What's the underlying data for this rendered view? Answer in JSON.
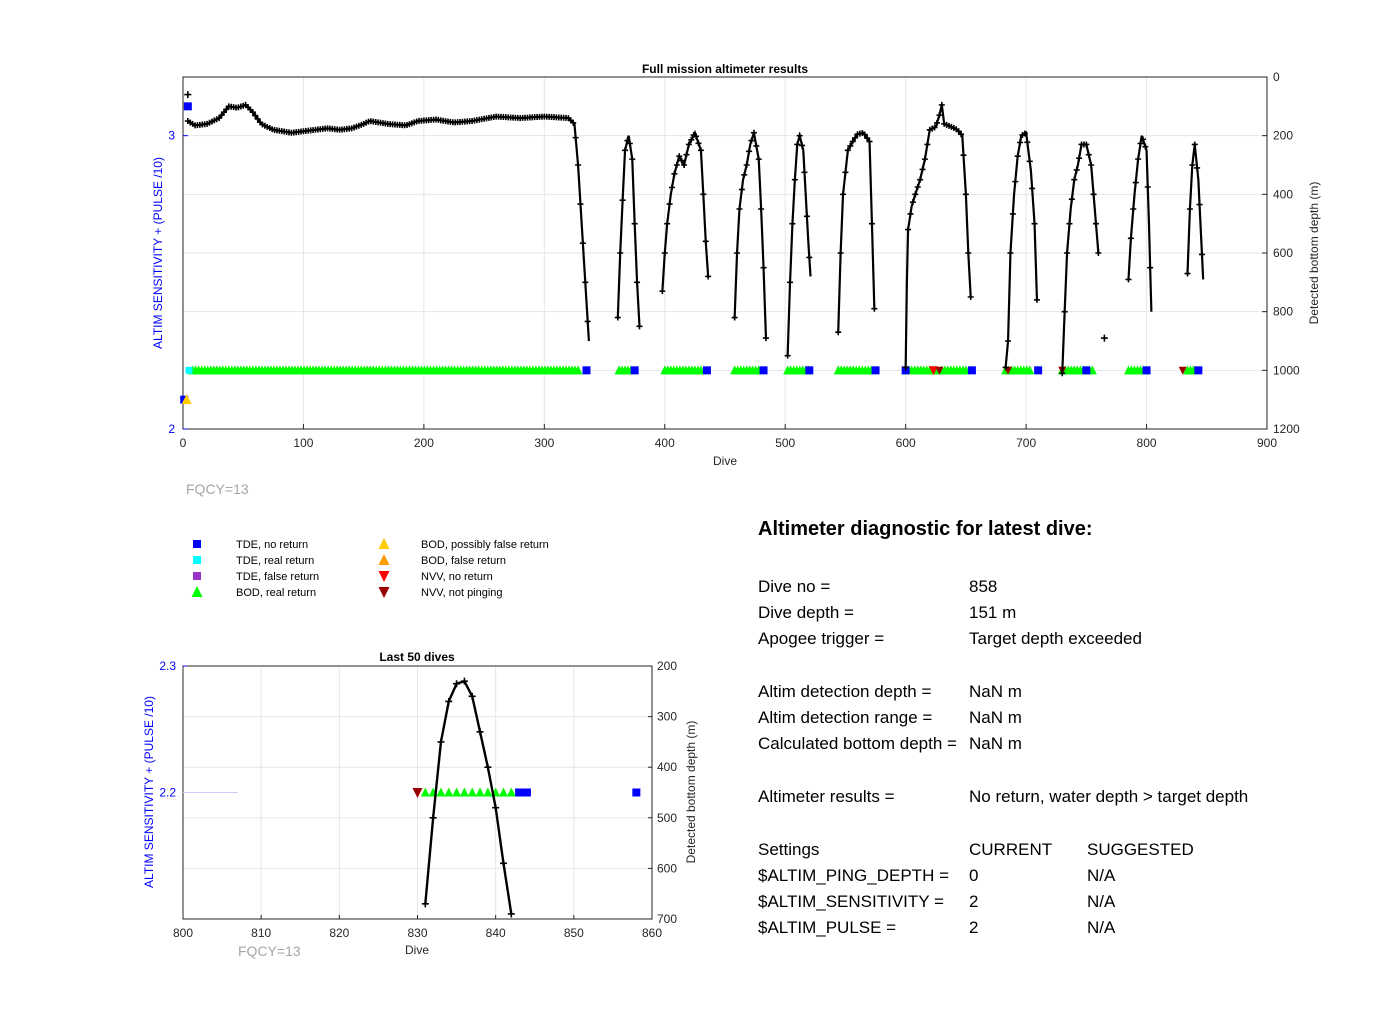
{
  "chart_data": [
    {
      "type": "scatter",
      "title": "Full mission altimeter results",
      "xlabel": "Dive",
      "ylabel": "ALTIM SENSITIVITY + (PULSE /10)",
      "y2label": "Detected bottom depth (m)",
      "xlim": [
        0,
        900
      ],
      "ylim": [
        2,
        3.2
      ],
      "y2lim": [
        0,
        1200
      ],
      "y2_reversed": true,
      "xticks": [
        0,
        100,
        200,
        300,
        400,
        500,
        600,
        700,
        800,
        900
      ],
      "yticks": [
        2,
        3
      ],
      "y2ticks": [
        0,
        200,
        400,
        600,
        800,
        1000,
        1200
      ],
      "grid": true,
      "annotation": "FQCY=13",
      "depth_series": {
        "name": "Detected bottom depth",
        "dive_segments": [
          [
            [
              4,
              150
            ],
            [
              10,
              165
            ],
            [
              20,
              160
            ],
            [
              30,
              140
            ],
            [
              38,
              100
            ],
            [
              45,
              105
            ],
            [
              52,
              95
            ],
            [
              58,
              120
            ],
            [
              65,
              160
            ],
            [
              75,
              180
            ],
            [
              90,
              190
            ],
            [
              100,
              185
            ],
            [
              110,
              180
            ],
            [
              120,
              175
            ],
            [
              130,
              180
            ],
            [
              140,
              175
            ],
            [
              150,
              160
            ],
            [
              155,
              150
            ],
            [
              170,
              160
            ],
            [
              185,
              165
            ],
            [
              195,
              150
            ],
            [
              210,
              145
            ],
            [
              225,
              155
            ],
            [
              240,
              150
            ],
            [
              260,
              135
            ],
            [
              280,
              140
            ],
            [
              300,
              135
            ],
            [
              320,
              140
            ],
            [
              325,
              160
            ],
            [
              328,
              300
            ],
            [
              331,
              500
            ],
            [
              334,
              700
            ],
            [
              337,
              900
            ]
          ],
          [
            [
              361,
              820
            ],
            [
              363,
              600
            ],
            [
              365,
              420
            ],
            [
              367,
              250
            ],
            [
              370,
              200
            ],
            [
              373,
              280
            ],
            [
              375,
              500
            ],
            [
              377,
              700
            ],
            [
              379,
              850
            ]
          ],
          [
            [
              398,
              730
            ],
            [
              400,
              600
            ],
            [
              402,
              500
            ],
            [
              405,
              400
            ],
            [
              408,
              330
            ],
            [
              412,
              270
            ],
            [
              416,
              300
            ],
            [
              420,
              230
            ],
            [
              425,
              190
            ],
            [
              430,
              250
            ],
            [
              432,
              400
            ],
            [
              434,
              560
            ],
            [
              436,
              680
            ]
          ],
          [
            [
              458,
              820
            ],
            [
              460,
              600
            ],
            [
              462,
              450
            ],
            [
              465,
              350
            ],
            [
              468,
              300
            ],
            [
              471,
              230
            ],
            [
              474,
              190
            ],
            [
              478,
              280
            ],
            [
              480,
              450
            ],
            [
              482,
              650
            ],
            [
              484,
              890
            ]
          ],
          [
            [
              502,
              950
            ],
            [
              504,
              700
            ],
            [
              506,
              500
            ],
            [
              508,
              350
            ],
            [
              510,
              230
            ],
            [
              512,
              200
            ],
            [
              515,
              250
            ],
            [
              517,
              400
            ],
            [
              519,
              550
            ],
            [
              521,
              680
            ]
          ],
          [
            [
              544,
              870
            ],
            [
              546,
              600
            ],
            [
              548,
              400
            ],
            [
              552,
              250
            ],
            [
              556,
              220
            ],
            [
              560,
              195
            ],
            [
              565,
              190
            ],
            [
              570,
              220
            ],
            [
              572,
              500
            ],
            [
              574,
              790
            ]
          ],
          [
            [
              600,
              990
            ],
            [
              601,
              700
            ],
            [
              602,
              520
            ],
            [
              605,
              440
            ],
            [
              608,
              400
            ],
            [
              612,
              350
            ],
            [
              616,
              280
            ],
            [
              620,
              180
            ],
            [
              625,
              170
            ],
            [
              628,
              130
            ],
            [
              630,
              95
            ],
            [
              632,
              160
            ],
            [
              638,
              170
            ],
            [
              643,
              180
            ],
            [
              647,
              200
            ],
            [
              650,
              400
            ],
            [
              652,
              600
            ],
            [
              654,
              750
            ]
          ],
          [
            [
              683,
              990
            ],
            [
              685,
              900
            ],
            [
              687,
              600
            ],
            [
              690,
              400
            ],
            [
              693,
              270
            ],
            [
              696,
              200
            ],
            [
              700,
              190
            ],
            [
              704,
              320
            ],
            [
              707,
              500
            ],
            [
              709,
              760
            ]
          ],
          [
            [
              730,
              1010
            ],
            [
              732,
              800
            ],
            [
              734,
              600
            ],
            [
              737,
              450
            ],
            [
              740,
              350
            ],
            [
              743,
              300
            ],
            [
              746,
              230
            ],
            [
              750,
              230
            ],
            [
              754,
              300
            ],
            [
              757,
              450
            ],
            [
              760,
              600
            ]
          ],
          [
            [
              785,
              690
            ],
            [
              787,
              550
            ],
            [
              790,
              400
            ],
            [
              793,
              280
            ],
            [
              796,
              200
            ],
            [
              800,
              250
            ],
            [
              802,
              500
            ],
            [
              804,
              800
            ]
          ],
          [
            [
              834,
              670
            ],
            [
              836,
              450
            ],
            [
              838,
              300
            ],
            [
              840,
              230
            ],
            [
              843,
              350
            ],
            [
              845,
              520
            ],
            [
              847,
              690
            ]
          ]
        ],
        "outliers": [
          [
            4,
            60
          ],
          [
            765,
            890
          ]
        ]
      },
      "tde_no_return": [
        [
          1,
          2.1
        ],
        [
          4,
          3.1
        ],
        [
          335,
          2.2
        ],
        [
          375,
          2.2
        ],
        [
          435,
          2.2
        ],
        [
          482,
          2.2
        ],
        [
          520,
          2.2
        ],
        [
          575,
          2.2
        ],
        [
          600,
          2.2
        ],
        [
          655,
          2.2
        ],
        [
          710,
          2.2
        ],
        [
          750,
          2.2
        ],
        [
          800,
          2.2
        ],
        [
          843,
          2.2
        ]
      ],
      "tde_real_return": [
        [
          5,
          2.2
        ]
      ],
      "bod_real_return_ranges": [
        [
          8,
          330
        ],
        [
          362,
          373
        ],
        [
          400,
          430
        ],
        [
          458,
          478
        ],
        [
          502,
          520
        ],
        [
          544,
          572
        ],
        [
          600,
          625
        ],
        [
          630,
          650
        ],
        [
          683,
          705
        ],
        [
          730,
          755
        ],
        [
          785,
          800
        ],
        [
          834,
          840
        ]
      ],
      "bod_possibly_false_return": [
        [
          3,
          2.1
        ]
      ],
      "nvv_no_return": [
        [
          623,
          2.2
        ]
      ],
      "nvv_not_pinging": [
        [
          628,
          2.2
        ],
        [
          685,
          2.2
        ],
        [
          730,
          2.2
        ],
        [
          830,
          2.2
        ]
      ]
    },
    {
      "type": "scatter",
      "title": "Last 50 dives",
      "xlabel": "Dive",
      "ylabel": "ALTIM SENSITIVITY + (PULSE /10)",
      "y2label": "Detected bottom depth (m)",
      "xlim": [
        800,
        860
      ],
      "ylim": [
        2.1,
        2.3
      ],
      "y2lim": [
        200,
        700
      ],
      "y2_reversed": true,
      "xticks": [
        800,
        810,
        820,
        830,
        840,
        850,
        860
      ],
      "yticks": [
        2.2,
        2.3
      ],
      "y2ticks": [
        200,
        300,
        400,
        500,
        600,
        700
      ],
      "grid": true,
      "annotation": "FQCY=13",
      "depth_series": {
        "name": "Detected bottom depth",
        "points": [
          [
            831,
            670
          ],
          [
            832,
            500
          ],
          [
            833,
            350
          ],
          [
            834,
            270
          ],
          [
            835,
            235
          ],
          [
            836,
            230
          ],
          [
            837,
            260
          ],
          [
            838,
            330
          ],
          [
            839,
            400
          ],
          [
            840,
            480
          ],
          [
            841,
            590
          ],
          [
            842,
            690
          ]
        ]
      },
      "tde_no_return": [
        [
          843,
          2.2
        ],
        [
          844,
          2.2
        ],
        [
          858,
          2.2
        ]
      ],
      "bod_real_return": [
        [
          831,
          2.2
        ],
        [
          832,
          2.2
        ],
        [
          833,
          2.2
        ],
        [
          834,
          2.2
        ],
        [
          835,
          2.2
        ],
        [
          836,
          2.2
        ],
        [
          837,
          2.2
        ],
        [
          838,
          2.2
        ],
        [
          839,
          2.2
        ],
        [
          840,
          2.2
        ],
        [
          841,
          2.2
        ],
        [
          842,
          2.2
        ]
      ],
      "nvv_not_pinging": [
        [
          830,
          2.2
        ]
      ],
      "blue_line_segment": [
        [
          800,
          2.2
        ],
        [
          807,
          2.2
        ]
      ]
    }
  ],
  "legend": {
    "items": [
      {
        "label": "TDE, no return",
        "marker": "square",
        "color": "#0000ff"
      },
      {
        "label": "TDE, real return",
        "marker": "square",
        "color": "#00ffff"
      },
      {
        "label": "TDE, false return",
        "marker": "square",
        "color": "#9933cc"
      },
      {
        "label": "BOD, real return",
        "marker": "triangle-up",
        "color": "#00ff00"
      },
      {
        "label": "BOD, possibly false return",
        "marker": "triangle-up",
        "color": "#ffcc00"
      },
      {
        "label": "BOD, false return",
        "marker": "triangle-up",
        "color": "#ff9900"
      },
      {
        "label": "NVV, no return",
        "marker": "triangle-down",
        "color": "#ff0000"
      },
      {
        "label": "NVV, not pinging",
        "marker": "triangle-down",
        "color": "#990000"
      }
    ]
  },
  "diagnostic": {
    "title": "Altimeter diagnostic for latest dive:",
    "rows": [
      {
        "label": "Dive no =",
        "value": "858",
        "value2": ""
      },
      {
        "label": "Dive depth =",
        "value": "151 m",
        "value2": ""
      },
      {
        "label": "Apogee trigger =",
        "value": "Target depth exceeded",
        "value2": ""
      },
      {
        "label": "Altim detection depth =",
        "value": "NaN m",
        "value2": ""
      },
      {
        "label": "Altim detection range =",
        "value": "NaN m",
        "value2": ""
      },
      {
        "label": "Calculated bottom depth =",
        "value": "NaN m",
        "value2": ""
      },
      {
        "label": "Altimeter results =",
        "value": "No return, water depth > target depth",
        "value2": ""
      },
      {
        "label": "Settings",
        "value": "CURRENT",
        "value2": "SUGGESTED"
      },
      {
        "label": "$ALTIM_PING_DEPTH =",
        "value": "0",
        "value2": "N/A"
      },
      {
        "label": "$ALTIM_SENSITIVITY =",
        "value": "2",
        "value2": "N/A"
      },
      {
        "label": "$ALTIM_PULSE =",
        "value": "2",
        "value2": "N/A"
      }
    ]
  },
  "colors": {
    "depth_line": "#000000",
    "left_axis": "#0000ff",
    "grid": "#e6e6e6",
    "annotation": "#a6a6a6",
    "tde_no_return": "#0000ff",
    "tde_real_return": "#00ffff",
    "bod_real_return": "#00ff00",
    "bod_possibly_false_return": "#ffcc00",
    "nvv_no_return": "#ff0000",
    "nvv_not_pinging": "#990000"
  }
}
